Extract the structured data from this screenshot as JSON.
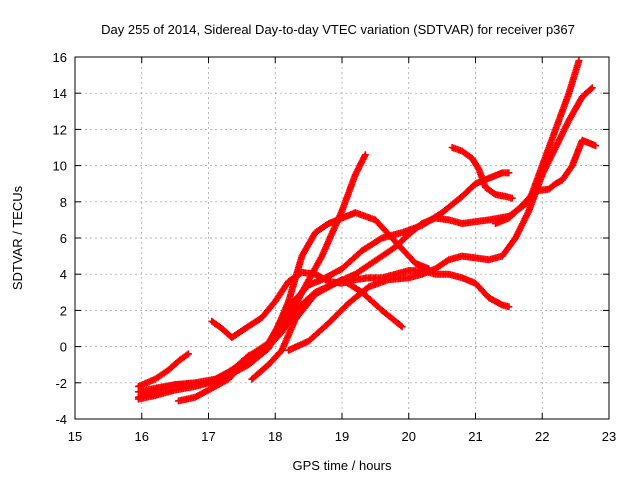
{
  "chart_data": {
    "type": "scatter",
    "title": "Day 255 of 2014, Sidereal Day-to-day VTEC variation (SDTVAR) for receiver p367",
    "xlabel": "GPS time / hours",
    "ylabel": "SDTVAR / TECUs",
    "xlim": [
      15,
      23
    ],
    "ylim": [
      -4,
      16
    ],
    "x_ticks": [
      15,
      16,
      17,
      18,
      19,
      20,
      21,
      22,
      23
    ],
    "y_ticks": [
      -4,
      -2,
      0,
      2,
      4,
      6,
      8,
      10,
      12,
      14,
      16
    ],
    "grid": true,
    "legend": "none",
    "marker": "plus",
    "color": "#ff0000",
    "series": [
      {
        "x": [
          15.95,
          16.2,
          16.4,
          16.55,
          16.7
        ],
        "y": [
          -2.2,
          -1.8,
          -1.3,
          -0.8,
          -0.4
        ]
      },
      {
        "x": [
          15.95,
          16.2,
          16.5,
          16.8,
          17.1,
          17.3,
          17.6,
          17.8,
          18.0,
          18.2,
          18.4,
          18.7,
          19.0,
          19.2,
          19.35
        ],
        "y": [
          -2.5,
          -2.3,
          -2.1,
          -2.0,
          -1.8,
          -1.4,
          -0.7,
          -0.2,
          0.5,
          1.5,
          3.0,
          5.0,
          7.5,
          9.5,
          10.6
        ]
      },
      {
        "x": [
          15.95,
          16.2,
          16.5,
          16.8,
          17.0,
          17.3,
          17.6,
          17.9,
          18.1,
          18.3,
          18.6,
          18.9,
          19.0,
          19.3,
          19.6,
          19.9
        ],
        "y": [
          -2.8,
          -2.4,
          -2.1,
          -2.1,
          -2.0,
          -1.5,
          -0.5,
          0.0,
          0.8,
          2.0,
          3.0,
          3.5,
          3.7,
          3.0,
          2.0,
          1.1
        ]
      },
      {
        "x": [
          15.95,
          16.2,
          16.5,
          16.8,
          17.0,
          17.3,
          17.6,
          17.9,
          18.2,
          18.4,
          18.6,
          18.8,
          19.0,
          19.2,
          19.5,
          19.8,
          20.1,
          20.3
        ],
        "y": [
          -2.9,
          -2.7,
          -2.4,
          -2.2,
          -2.0,
          -1.6,
          -1.0,
          -0.1,
          2.5,
          5.0,
          6.3,
          6.8,
          7.1,
          7.4,
          7.0,
          5.8,
          4.6,
          4.3
        ]
      },
      {
        "x": [
          16.55,
          16.8,
          17.0,
          17.3,
          17.5,
          17.7,
          17.9,
          18.1,
          18.3,
          18.5,
          18.7,
          19.0,
          19.3,
          19.6,
          19.9,
          20.2,
          20.5,
          20.8,
          21.0,
          21.2,
          21.4,
          21.5
        ],
        "y": [
          -3.0,
          -2.8,
          -2.4,
          -1.8,
          -1.0,
          -0.3,
          0.2,
          1.5,
          2.6,
          3.4,
          3.7,
          4.3,
          5.3,
          6.0,
          6.3,
          6.7,
          7.4,
          8.3,
          9.0,
          9.3,
          9.6,
          9.6
        ]
      },
      {
        "x": [
          17.05,
          17.2,
          17.35,
          17.55,
          17.8,
          18.0,
          18.2,
          18.4,
          18.6,
          18.8,
          19.0,
          19.2,
          19.4,
          19.6,
          19.8,
          20.0,
          20.2,
          20.4,
          20.6,
          20.8,
          21.0,
          21.2,
          21.4,
          21.5
        ],
        "y": [
          1.4,
          1.0,
          0.5,
          1.0,
          1.6,
          2.5,
          3.6,
          4.1,
          4.0,
          3.6,
          3.5,
          3.7,
          3.8,
          3.8,
          4.0,
          4.2,
          4.2,
          4.0,
          4.0,
          3.8,
          3.5,
          2.7,
          2.3,
          2.2
        ]
      },
      {
        "x": [
          17.65,
          17.9,
          18.1,
          18.3,
          18.6,
          18.9,
          19.2,
          19.4,
          19.6,
          19.8,
          20.0,
          20.2,
          20.4,
          20.6,
          20.8,
          21.0,
          21.2,
          21.5,
          21.8,
          22.0,
          22.2,
          22.4,
          22.55
        ],
        "y": [
          -1.8,
          -1.0,
          -0.2,
          1.5,
          2.9,
          3.5,
          4.0,
          4.5,
          5.0,
          5.5,
          6.2,
          6.8,
          7.1,
          7.0,
          6.8,
          6.9,
          7.0,
          7.2,
          8.0,
          10.0,
          12.0,
          14.0,
          15.8
        ]
      },
      {
        "x": [
          18.2,
          18.5,
          18.8,
          19.1,
          19.4,
          19.7,
          20.0,
          20.2,
          20.4,
          20.6,
          20.8,
          21.0,
          21.2,
          21.4,
          21.6,
          21.8,
          22.0,
          22.2,
          22.4,
          22.6,
          22.75
        ],
        "y": [
          -0.2,
          0.3,
          1.3,
          2.4,
          3.3,
          3.7,
          3.8,
          4.0,
          4.3,
          4.8,
          5.0,
          4.9,
          4.8,
          5.0,
          6.0,
          7.5,
          9.5,
          11.0,
          12.5,
          13.8,
          14.3
        ]
      },
      {
        "x": [
          20.65,
          20.8,
          20.95,
          21.05,
          21.15,
          21.3,
          21.45,
          21.55
        ],
        "y": [
          11.0,
          10.8,
          10.4,
          9.8,
          8.8,
          8.4,
          8.3,
          8.2
        ]
      },
      {
        "x": [
          21.3,
          21.5,
          21.7,
          21.9,
          22.1,
          22.2,
          22.3,
          22.45,
          22.6,
          22.8
        ],
        "y": [
          6.8,
          7.1,
          7.8,
          8.6,
          8.7,
          9.0,
          9.2,
          10.0,
          11.4,
          11.1
        ]
      }
    ]
  }
}
